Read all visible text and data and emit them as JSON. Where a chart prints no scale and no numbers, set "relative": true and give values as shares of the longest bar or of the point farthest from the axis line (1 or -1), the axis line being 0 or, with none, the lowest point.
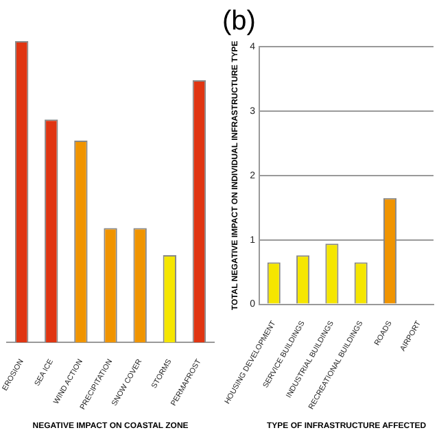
{
  "chart_data": [
    {
      "type": "bar",
      "xlabel": "NEGATIVE IMPACT ON COASTAL ZONE",
      "categories": [
        "EROSION",
        "SEA ICE",
        "WIND ACTION",
        "PRECIPITATION",
        "SNOW COVER",
        "STORMS",
        "PERMAFROST"
      ],
      "values": [
        1,
        0.74,
        0.67,
        0.38,
        0.38,
        0.29,
        0.87
      ],
      "colors": [
        "#e03512",
        "#e03512",
        "#f09400",
        "#f09400",
        "#f09400",
        "#f5e600",
        "#e03512"
      ],
      "relative": true
    },
    {
      "type": "bar",
      "title": "(b)",
      "xlabel": "TYPE OF INFRASTRUCTURE AFFECTED",
      "ylabel": "TOTAL NEGATIVE IMPACT ON INDIVIDUAL INFRASTRUCTURE TYPE",
      "categories": [
        "HOUSING DEVELOPMENT",
        "SERVICE BUILDINGS",
        "INDUSTRIAL BUILDINGS",
        "RECREATIONAL BUILDINGS",
        "ROADS",
        "AIRPORT"
      ],
      "values": [
        0.65,
        0.76,
        0.94,
        0.65,
        1.65,
        null
      ],
      "colors": [
        "#f5e600",
        "#f5e600",
        "#f5e600",
        "#f5e600",
        "#f09400",
        "#f09400"
      ],
      "ylim": [
        0,
        4
      ],
      "yticks": [
        0,
        1,
        2,
        3,
        4
      ],
      "grid": "y"
    }
  ]
}
